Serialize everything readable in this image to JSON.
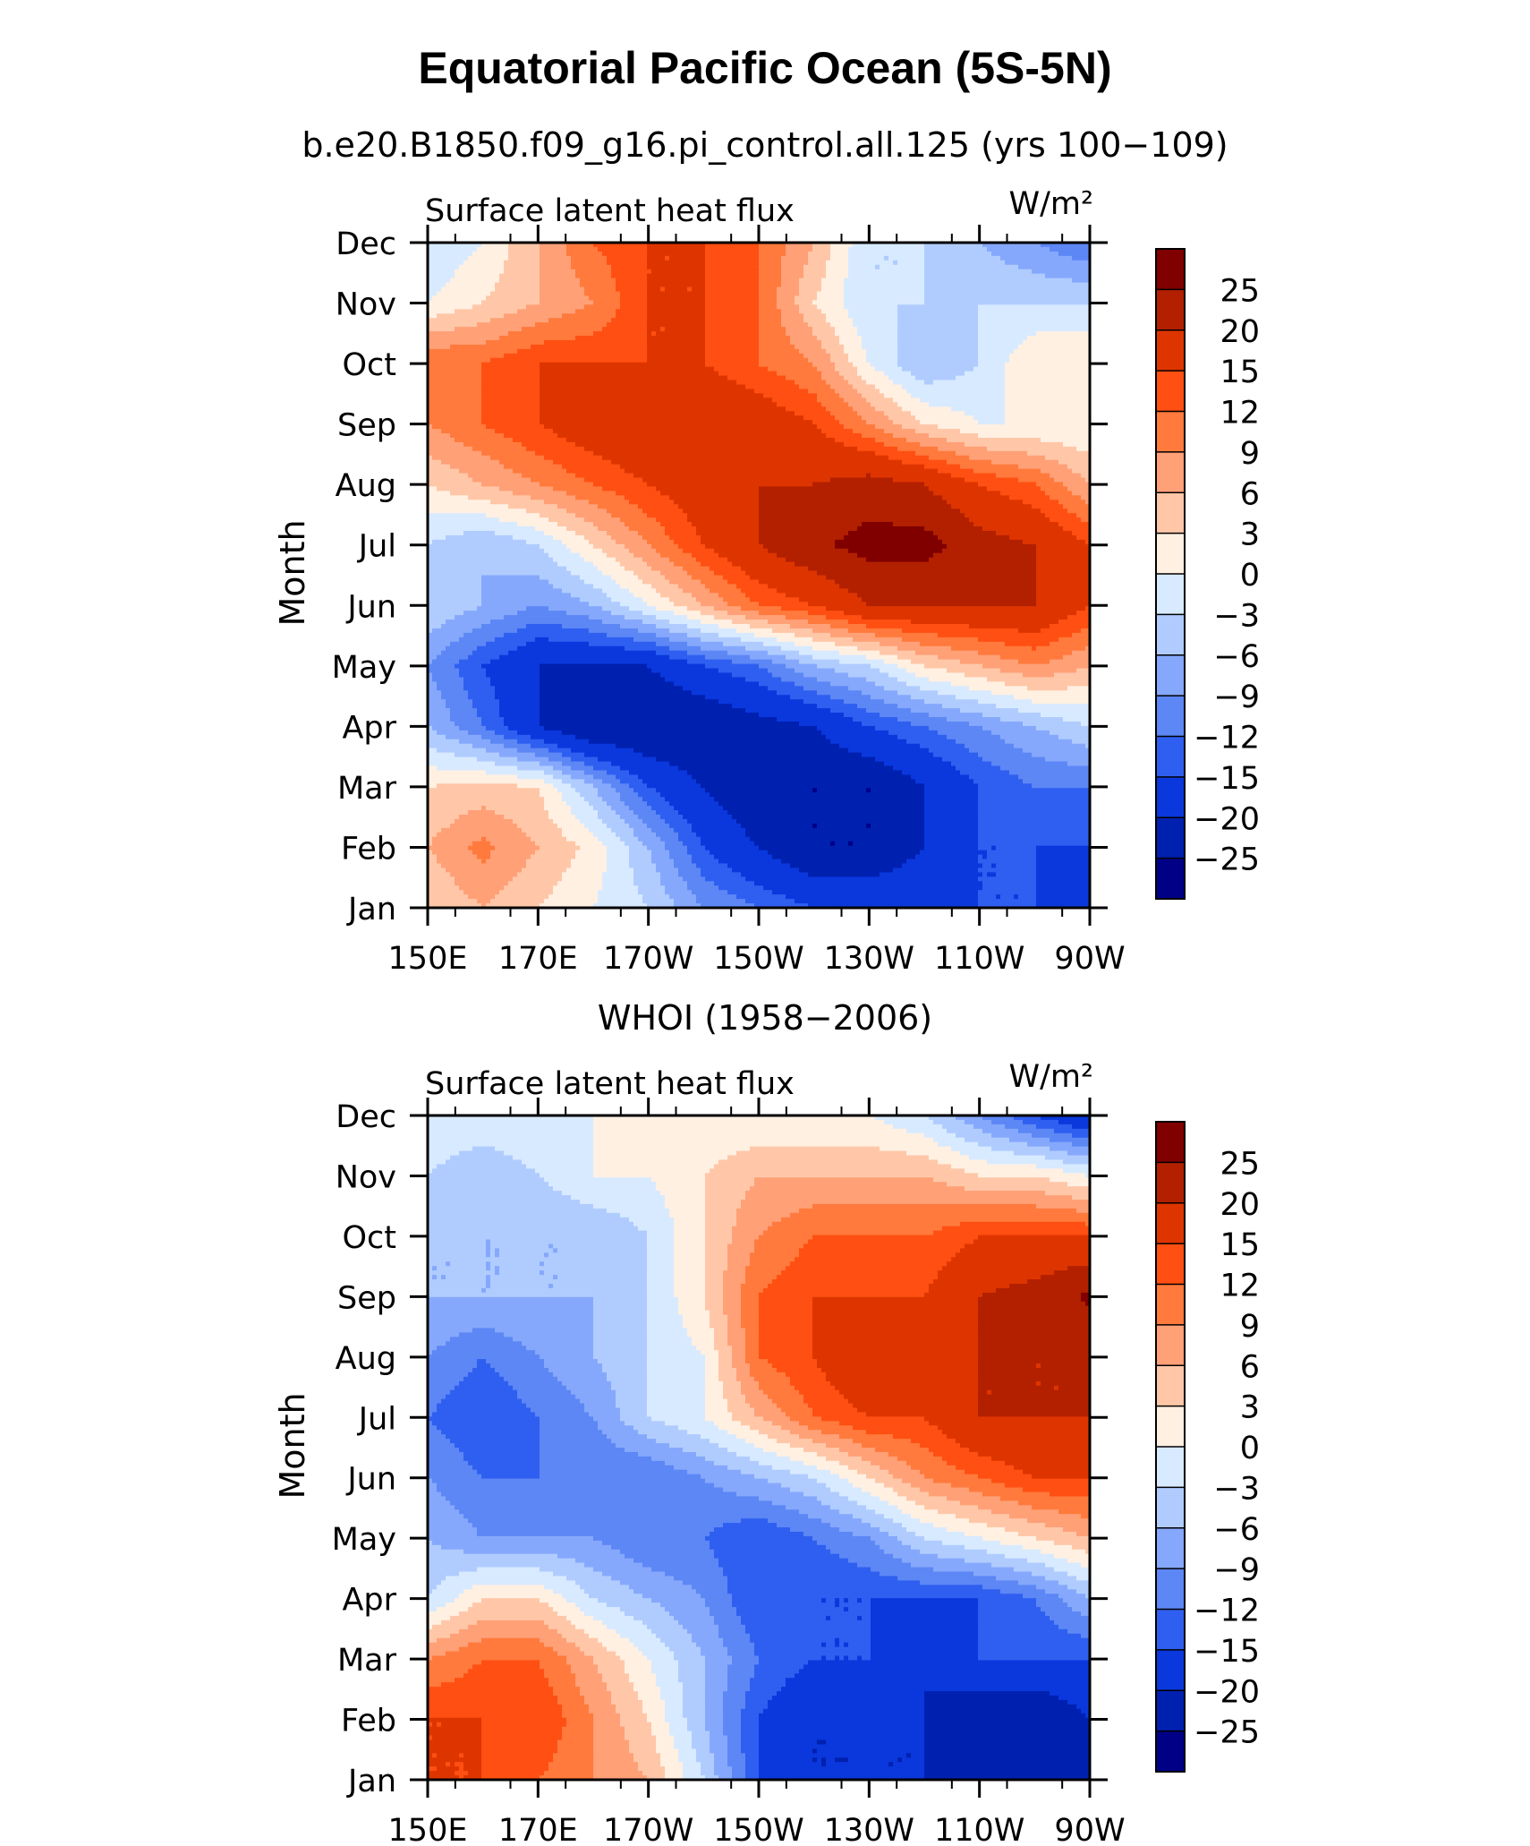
{
  "figure": {
    "title": "Equatorial Pacific Ocean (5S-5N)"
  },
  "colorbar": {
    "levels": [
      "25",
      "20",
      "15",
      "12",
      "9",
      "6",
      "3",
      "0",
      "−3",
      "−6",
      "−9",
      "−12",
      "−15",
      "−20",
      "−25"
    ],
    "colors": [
      "#800000",
      "#b22000",
      "#de3500",
      "#ff4f12",
      "#ff7a3c",
      "#ffa077",
      "#ffc7a8",
      "#fff0e2",
      "#d8eaff",
      "#b0ccff",
      "#86a8fc",
      "#5c87f5",
      "#2f5ff0",
      "#0a38dd",
      "#0020b0",
      "#000087"
    ]
  },
  "chart_data": [
    {
      "type": "heatmap",
      "subtitle": "b.e20.B1850.f09_g16.pi_control.all.125 (yrs 100−109)",
      "left_label": "Surface latent heat flux",
      "units": "W/m²",
      "xlabel": "",
      "ylabel": "Month",
      "x_ticks": [
        "150E",
        "170E",
        "170W",
        "150W",
        "130W",
        "110W",
        "90W"
      ],
      "y_ticks": [
        "Jan",
        "Feb",
        "Mar",
        "Apr",
        "May",
        "Jun",
        "Jul",
        "Aug",
        "Sep",
        "Oct",
        "Nov",
        "Dec"
      ],
      "x": [
        150,
        160,
        170,
        180,
        190,
        200,
        210,
        220,
        230,
        240,
        250,
        260,
        270
      ],
      "x_units": "degrees east",
      "y": [
        "Jan",
        "Feb",
        "Mar",
        "Apr",
        "May",
        "Jun",
        "Jul",
        "Aug",
        "Sep",
        "Oct",
        "Nov",
        "Dec"
      ],
      "z": [
        [
          3,
          6,
          3,
          0,
          -3,
          -9,
          -12,
          -15,
          -15,
          -15,
          -15,
          -15,
          -20
        ],
        [
          6,
          10,
          6,
          2,
          -6,
          -15,
          -20,
          -25,
          -25,
          -20,
          -15,
          -15,
          -15
        ],
        [
          3,
          4,
          3,
          -6,
          -15,
          -20,
          -25,
          -25,
          -25,
          -20,
          -15,
          -12,
          -12
        ],
        [
          -6,
          -12,
          -20,
          -25,
          -25,
          -25,
          -22,
          -20,
          -15,
          -12,
          -9,
          -6,
          -3
        ],
        [
          -9,
          -15,
          -20,
          -20,
          -20,
          -15,
          -12,
          -6,
          -3,
          3,
          6,
          9,
          6
        ],
        [
          -3,
          -6,
          -9,
          -6,
          0,
          6,
          12,
          15,
          20,
          20,
          20,
          20,
          15
        ],
        [
          -3,
          -6,
          -3,
          3,
          9,
          15,
          20,
          24,
          27,
          27,
          22,
          20,
          15
        ],
        [
          3,
          6,
          9,
          12,
          15,
          18,
          20,
          20,
          22,
          20,
          15,
          12,
          6
        ],
        [
          9,
          12,
          15,
          18,
          20,
          20,
          18,
          15,
          9,
          3,
          0,
          0,
          0
        ],
        [
          12,
          12,
          15,
          15,
          15,
          15,
          12,
          9,
          0,
          -6,
          -3,
          3,
          3
        ],
        [
          0,
          3,
          6,
          9,
          15,
          15,
          12,
          3,
          -3,
          -3,
          -3,
          -3,
          -3
        ],
        [
          -3,
          0,
          6,
          12,
          15,
          15,
          12,
          6,
          -3,
          -3,
          -6,
          -9,
          -12
        ]
      ]
    },
    {
      "type": "heatmap",
      "subtitle": "WHOI (1958−2006)",
      "left_label": "Surface latent heat flux",
      "units": "W/m²",
      "xlabel": "",
      "ylabel": "Month",
      "x_ticks": [
        "150E",
        "170E",
        "170W",
        "150W",
        "130W",
        "110W",
        "90W"
      ],
      "y_ticks": [
        "Jan",
        "Feb",
        "Mar",
        "Apr",
        "May",
        "Jun",
        "Jul",
        "Aug",
        "Sep",
        "Oct",
        "Nov",
        "Dec"
      ],
      "x": [
        150,
        160,
        170,
        180,
        190,
        200,
        210,
        220,
        230,
        240,
        250,
        260,
        270
      ],
      "x_units": "degrees east",
      "y": [
        "Jan",
        "Feb",
        "Mar",
        "Apr",
        "May",
        "Jun",
        "Jul",
        "Aug",
        "Sep",
        "Oct",
        "Nov",
        "Dec"
      ],
      "z": [
        [
          15,
          15,
          12,
          9,
          6,
          -3,
          -15,
          -20,
          -20,
          -20,
          -20,
          -25,
          -25
        ],
        [
          15,
          15,
          15,
          9,
          3,
          -6,
          -15,
          -20,
          -20,
          -20,
          -25,
          -25,
          -20
        ],
        [
          9,
          12,
          12,
          6,
          0,
          -6,
          -12,
          -15,
          -15,
          -20,
          -15,
          -15,
          -15
        ],
        [
          -3,
          3,
          3,
          -3,
          -6,
          -9,
          -15,
          -15,
          -15,
          -15,
          -15,
          -12,
          -6
        ],
        [
          -6,
          -9,
          -9,
          -9,
          -12,
          -12,
          -15,
          -12,
          -9,
          -3,
          0,
          3,
          6
        ],
        [
          -9,
          -12,
          -12,
          -12,
          -12,
          -9,
          -6,
          -3,
          3,
          9,
          12,
          15,
          15
        ],
        [
          -12,
          -15,
          -12,
          -9,
          -3,
          0,
          6,
          12,
          15,
          15,
          20,
          20,
          20
        ],
        [
          -9,
          -12,
          -9,
          -6,
          -3,
          0,
          12,
          15,
          20,
          15,
          20,
          20,
          20
        ],
        [
          -6,
          -6,
          -6,
          -6,
          -3,
          3,
          12,
          15,
          15,
          15,
          20,
          22,
          26
        ],
        [
          -6,
          -6,
          -6,
          -6,
          -3,
          3,
          9,
          12,
          12,
          12,
          15,
          15,
          15
        ],
        [
          -3,
          -6,
          -3,
          0,
          0,
          3,
          6,
          6,
          6,
          6,
          3,
          3,
          0
        ],
        [
          0,
          0,
          0,
          0,
          0,
          0,
          0,
          0,
          0,
          -3,
          -9,
          -15,
          -20
        ]
      ]
    }
  ]
}
